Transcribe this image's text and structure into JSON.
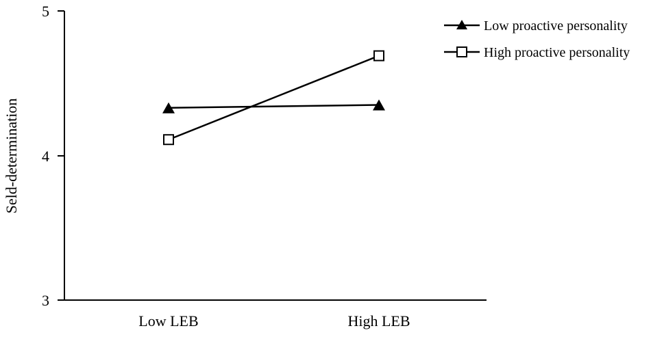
{
  "chart_data": {
    "type": "line",
    "title": "",
    "xlabel": "",
    "ylabel": "Seld-determination",
    "ylim": [
      3,
      5
    ],
    "yticks": [
      "3",
      "4",
      "5"
    ],
    "categories": [
      "Low LEB",
      "High LEB"
    ],
    "grid": false,
    "legend_position": "top-right",
    "series": [
      {
        "name": "Low proactive personality",
        "marker": "filled-triangle",
        "color": "#000000",
        "values": [
          4.33,
          4.35
        ]
      },
      {
        "name": "High proactive personality",
        "marker": "open-square",
        "color": "#000000",
        "values": [
          4.11,
          4.69
        ]
      }
    ]
  }
}
